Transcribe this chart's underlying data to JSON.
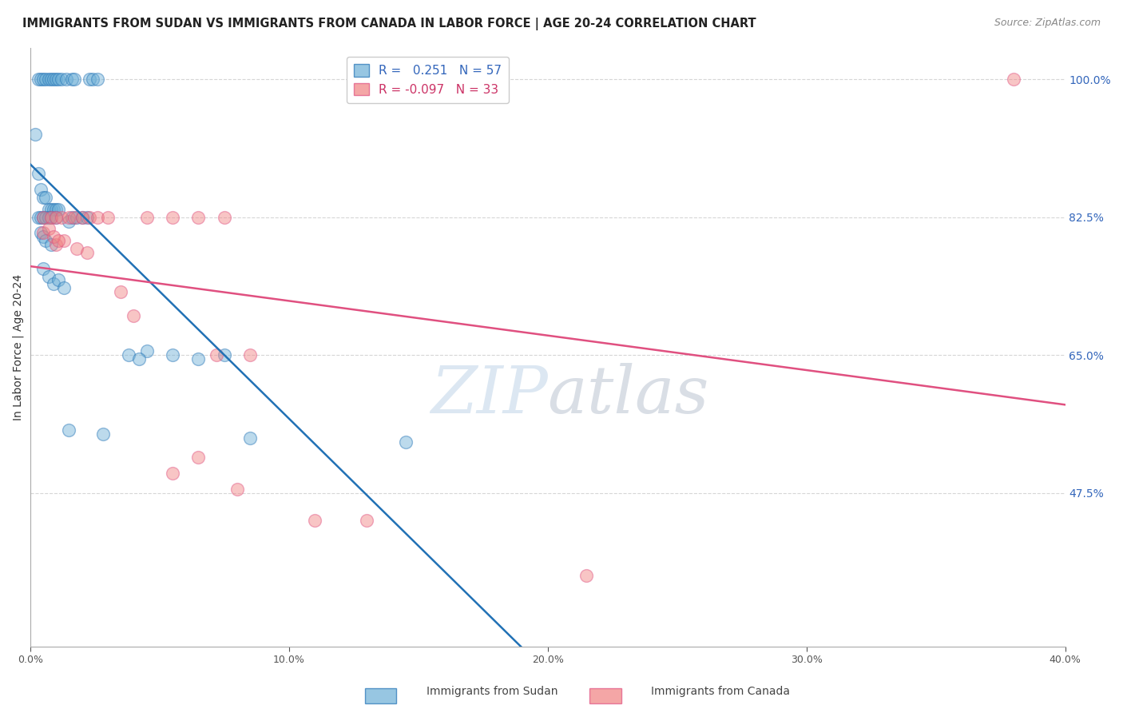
{
  "title": "IMMIGRANTS FROM SUDAN VS IMMIGRANTS FROM CANADA IN LABOR FORCE | AGE 20-24 CORRELATION CHART",
  "source": "Source: ZipAtlas.com",
  "ylabel": "In Labor Force | Age 20-24",
  "ylabel_right_ticks": [
    100.0,
    82.5,
    65.0,
    47.5
  ],
  "xmin": 0.0,
  "xmax": 40.0,
  "ymin": 28.0,
  "ymax": 104.0,
  "blue_R": 0.251,
  "blue_N": 57,
  "pink_R": -0.097,
  "pink_N": 33,
  "blue_color": "#6baed6",
  "pink_color": "#f08080",
  "blue_line_color": "#2171b5",
  "pink_line_color": "#e05080",
  "background_color": "#ffffff",
  "grid_color": "#cccccc",
  "blue_x": [
    0.3,
    0.4,
    0.5,
    0.6,
    0.7,
    0.8,
    0.9,
    1.0,
    1.1,
    1.2,
    1.4,
    1.6,
    1.7,
    2.3,
    2.4,
    2.6,
    0.2,
    0.3,
    0.4,
    0.5,
    0.6,
    0.7,
    0.8,
    0.9,
    1.0,
    1.1,
    0.3,
    0.4,
    0.5,
    0.6,
    0.7,
    0.8,
    1.0,
    1.5,
    1.6,
    1.8,
    2.0,
    2.2,
    0.4,
    0.5,
    0.6,
    0.8,
    4.5,
    5.5,
    1.5,
    2.8,
    0.5,
    0.7,
    0.9,
    1.1,
    1.3,
    3.8,
    4.2,
    6.5,
    7.5,
    8.5,
    14.5
  ],
  "blue_y": [
    100.0,
    100.0,
    100.0,
    100.0,
    100.0,
    100.0,
    100.0,
    100.0,
    100.0,
    100.0,
    100.0,
    100.0,
    100.0,
    100.0,
    100.0,
    100.0,
    93.0,
    88.0,
    86.0,
    85.0,
    85.0,
    83.5,
    83.5,
    83.5,
    83.5,
    83.5,
    82.5,
    82.5,
    82.5,
    82.5,
    82.5,
    82.5,
    82.5,
    82.0,
    82.5,
    82.5,
    82.5,
    82.5,
    80.5,
    80.0,
    79.5,
    79.0,
    65.5,
    65.0,
    55.5,
    55.0,
    76.0,
    75.0,
    74.0,
    74.5,
    73.5,
    65.0,
    64.5,
    64.5,
    65.0,
    54.5,
    54.0
  ],
  "pink_x": [
    0.5,
    0.8,
    1.0,
    1.2,
    1.5,
    1.7,
    2.0,
    2.3,
    2.6,
    3.0,
    4.5,
    5.5,
    6.5,
    7.5,
    1.0,
    1.3,
    1.8,
    2.2,
    0.5,
    0.7,
    0.9,
    1.1,
    3.5,
    4.0,
    7.2,
    8.5,
    5.5,
    6.5,
    8.0,
    11.0,
    13.0,
    21.5,
    38.0
  ],
  "pink_y": [
    82.5,
    82.5,
    82.5,
    82.5,
    82.5,
    82.5,
    82.5,
    82.5,
    82.5,
    82.5,
    82.5,
    82.5,
    82.5,
    82.5,
    79.0,
    79.5,
    78.5,
    78.0,
    80.5,
    81.0,
    80.0,
    79.5,
    73.0,
    70.0,
    65.0,
    65.0,
    50.0,
    52.0,
    48.0,
    44.0,
    44.0,
    37.0,
    100.0
  ]
}
